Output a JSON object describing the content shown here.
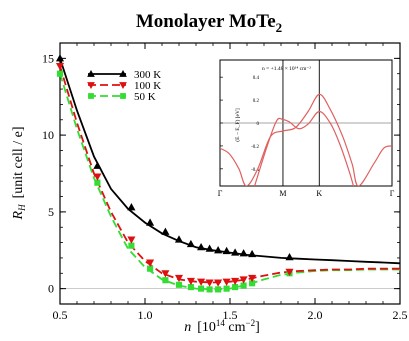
{
  "figure": {
    "title": "Monolayer MoTe",
    "title_sub": "2"
  },
  "chart_data": [
    {
      "type": "line",
      "title": "Monolayer MoTe₂",
      "xlabel": "n",
      "xlabel_unit": "[10",
      "xlabel_unit_sup": "14",
      "xlabel_unit_tail": " cm",
      "xlabel_unit_sup2": "−2",
      "xlabel_unit_end": "]",
      "ylabel": "R",
      "ylabel_sub": "H",
      "ylabel_unit": "[unit cell / e]",
      "xlim": [
        0.5,
        2.5
      ],
      "ylim": [
        -1,
        16
      ],
      "x_ticks": [
        0.5,
        1.0,
        1.5,
        2.0,
        2.5
      ],
      "x_tick_labels": [
        "0.5",
        "1.0",
        "1.5",
        "2.0",
        "2.5"
      ],
      "y_ticks": [
        0,
        5,
        10,
        15
      ],
      "y_tick_labels": [
        "0",
        "5",
        "10",
        "15"
      ],
      "reference_line_y": 0,
      "legend_position": "top-left",
      "series": [
        {
          "name": "300 K",
          "color": "#000000",
          "line_style": "solid",
          "marker": "triangle",
          "curve": [
            [
              0.5,
              15.0
            ],
            [
              0.6,
              11.6
            ],
            [
              0.7,
              8.6
            ],
            [
              0.8,
              6.5
            ],
            [
              0.9,
              5.2
            ],
            [
              1.0,
              4.3
            ],
            [
              1.1,
              3.6
            ],
            [
              1.2,
              3.1
            ],
            [
              1.3,
              2.7
            ],
            [
              1.4,
              2.5
            ],
            [
              1.5,
              2.35
            ],
            [
              1.6,
              2.2
            ],
            [
              1.7,
              2.1
            ],
            [
              1.8,
              2.0
            ],
            [
              1.9,
              1.95
            ],
            [
              2.0,
              1.9
            ],
            [
              2.1,
              1.85
            ],
            [
              2.2,
              1.8
            ],
            [
              2.3,
              1.75
            ],
            [
              2.4,
              1.7
            ],
            [
              2.5,
              1.65
            ]
          ],
          "markers": [
            [
              0.5,
              15.0
            ],
            [
              0.72,
              8.0
            ],
            [
              0.92,
              5.3
            ],
            [
              1.03,
              4.3
            ],
            [
              1.12,
              3.7
            ],
            [
              1.2,
              3.2
            ],
            [
              1.27,
              2.9
            ],
            [
              1.33,
              2.7
            ],
            [
              1.38,
              2.6
            ],
            [
              1.43,
              2.5
            ],
            [
              1.48,
              2.45
            ],
            [
              1.53,
              2.35
            ],
            [
              1.58,
              2.3
            ],
            [
              1.63,
              2.25
            ],
            [
              1.85,
              2.05
            ]
          ]
        },
        {
          "name": "100 K",
          "color": "#dd1111",
          "line_style": "dashed",
          "marker": "triangle-down",
          "curve": [
            [
              0.5,
              14.5
            ],
            [
              0.6,
              10.8
            ],
            [
              0.7,
              7.5
            ],
            [
              0.8,
              5.0
            ],
            [
              0.9,
              3.0
            ],
            [
              1.0,
              1.8
            ],
            [
              1.1,
              1.0
            ],
            [
              1.2,
              0.6
            ],
            [
              1.3,
              0.45
            ],
            [
              1.4,
              0.4
            ],
            [
              1.5,
              0.45
            ],
            [
              1.6,
              0.6
            ],
            [
              1.7,
              0.85
            ],
            [
              1.8,
              1.05
            ],
            [
              1.9,
              1.15
            ],
            [
              2.0,
              1.2
            ],
            [
              2.1,
              1.25
            ],
            [
              2.2,
              1.25
            ],
            [
              2.3,
              1.3
            ],
            [
              2.4,
              1.3
            ],
            [
              2.5,
              1.3
            ]
          ],
          "markers": [
            [
              0.5,
              14.5
            ],
            [
              0.72,
              7.3
            ],
            [
              0.92,
              3.2
            ],
            [
              1.03,
              1.7
            ],
            [
              1.12,
              1.0
            ],
            [
              1.2,
              0.7
            ],
            [
              1.27,
              0.5
            ],
            [
              1.33,
              0.45
            ],
            [
              1.38,
              0.4
            ],
            [
              1.43,
              0.4
            ],
            [
              1.48,
              0.45
            ],
            [
              1.53,
              0.5
            ],
            [
              1.58,
              0.6
            ],
            [
              1.63,
              0.7
            ],
            [
              1.85,
              1.1
            ]
          ]
        },
        {
          "name": "50 K",
          "color": "#33dd33",
          "line_style": "dashed",
          "marker": "square",
          "curve": [
            [
              0.5,
              14.0
            ],
            [
              0.6,
              10.4
            ],
            [
              0.7,
              7.2
            ],
            [
              0.8,
              4.7
            ],
            [
              0.9,
              2.6
            ],
            [
              1.0,
              1.4
            ],
            [
              1.1,
              0.6
            ],
            [
              1.2,
              0.2
            ],
            [
              1.3,
              0.0
            ],
            [
              1.4,
              -0.05
            ],
            [
              1.5,
              0.0
            ],
            [
              1.6,
              0.25
            ],
            [
              1.7,
              0.6
            ],
            [
              1.8,
              0.9
            ],
            [
              1.9,
              1.05
            ],
            [
              2.0,
              1.15
            ],
            [
              2.1,
              1.2
            ],
            [
              2.2,
              1.2
            ],
            [
              2.3,
              1.25
            ],
            [
              2.4,
              1.25
            ],
            [
              2.5,
              1.25
            ]
          ],
          "markers": [
            [
              0.5,
              14.0
            ],
            [
              0.72,
              6.9
            ],
            [
              0.92,
              2.8
            ],
            [
              1.03,
              1.3
            ],
            [
              1.12,
              0.55
            ],
            [
              1.2,
              0.25
            ],
            [
              1.27,
              0.1
            ],
            [
              1.33,
              0.0
            ],
            [
              1.38,
              -0.05
            ],
            [
              1.43,
              -0.05
            ],
            [
              1.48,
              0.0
            ],
            [
              1.53,
              0.1
            ],
            [
              1.58,
              0.2
            ],
            [
              1.63,
              0.35
            ],
            [
              1.85,
              1.0
            ]
          ]
        }
      ]
    },
    {
      "type": "line",
      "title": "n = +1.48 × 10¹⁴ cm⁻²",
      "ylabel": "(E − E_F) [eV]",
      "x_tick_labels": [
        "Γ",
        "M",
        "K",
        "Γ"
      ],
      "x_ticks": [
        0,
        1,
        1.577,
        2.732
      ],
      "xlim": [
        0,
        2.732
      ],
      "ylim": [
        -0.55,
        0.55
      ],
      "y_ticks": [
        -0.4,
        -0.2,
        0,
        0.2,
        0.4
      ],
      "y_tick_labels": [
        "-0.4",
        "-0.2",
        "0",
        "0.2",
        "0.4"
      ],
      "reference_line_y": 0,
      "series": [
        {
          "color": "#e06060",
          "values": [
            [
              0,
              -0.22
            ],
            [
              0.15,
              -0.27
            ],
            [
              0.3,
              -0.4
            ],
            [
              0.42,
              -0.55
            ],
            [
              0.6,
              -0.4
            ],
            [
              0.8,
              -0.12
            ],
            [
              1.0,
              -0.07
            ],
            [
              1.2,
              -0.04
            ],
            [
              1.4,
              0.1
            ],
            [
              1.577,
              0.25
            ],
            [
              1.75,
              0.12
            ],
            [
              1.95,
              -0.12
            ],
            [
              2.1,
              -0.36
            ],
            [
              2.2,
              -0.55
            ],
            [
              2.45,
              -0.35
            ],
            [
              2.6,
              -0.22
            ],
            [
              2.732,
              -0.2
            ]
          ]
        },
        {
          "color": "#e06060",
          "values": [
            [
              0.55,
              -0.55
            ],
            [
              0.75,
              -0.2
            ],
            [
              0.9,
              0.02
            ],
            [
              1.0,
              0.03
            ],
            [
              1.1,
              0.01
            ],
            [
              1.25,
              -0.05
            ],
            [
              1.4,
              -0.01
            ],
            [
              1.577,
              0.1
            ],
            [
              1.75,
              0.0
            ],
            [
              1.9,
              -0.18
            ],
            [
              2.05,
              -0.42
            ],
            [
              2.12,
              -0.55
            ]
          ]
        }
      ]
    }
  ]
}
